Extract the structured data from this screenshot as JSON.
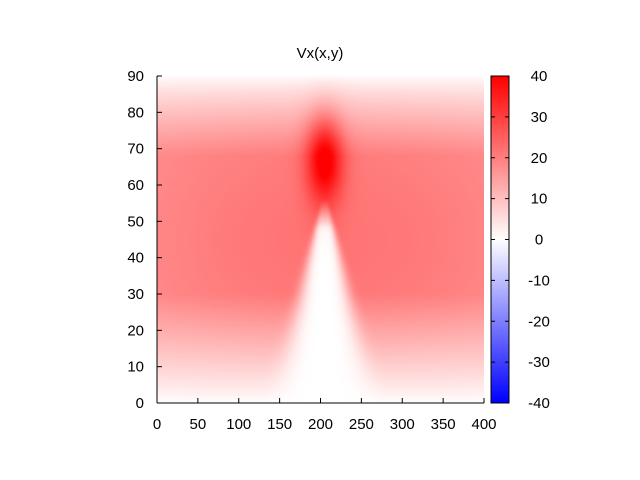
{
  "chart_data": {
    "type": "heatmap",
    "title": "Vx(x,y)",
    "xlabel": "",
    "ylabel": "",
    "xlim": [
      0,
      400
    ],
    "ylim": [
      0,
      90
    ],
    "x_ticks": [
      "0",
      "50",
      "100",
      "150",
      "200",
      "250",
      "300",
      "350",
      "400"
    ],
    "y_ticks": [
      "0",
      "10",
      "20",
      "30",
      "40",
      "50",
      "60",
      "70",
      "80",
      "90"
    ],
    "colorbar": {
      "range": [
        -40,
        40
      ],
      "ticks": [
        "40",
        "30",
        "20",
        "10",
        "0",
        "-10",
        "-20",
        "-30",
        "-40"
      ],
      "colors": {
        "low": "#0000ff",
        "mid": "#ffffff",
        "high": "#ff0000"
      }
    },
    "grid": false,
    "field": {
      "description_points": [
        {
          "x": 0,
          "y": 45,
          "value": 18
        },
        {
          "x": 50,
          "y": 45,
          "value": 20
        },
        {
          "x": 100,
          "y": 45,
          "value": 20
        },
        {
          "x": 300,
          "y": 45,
          "value": 20
        },
        {
          "x": 400,
          "y": 45,
          "value": 18
        },
        {
          "x": 205,
          "y": 67,
          "value": 40
        },
        {
          "x": 205,
          "y": 25,
          "value": 0
        },
        {
          "x": 205,
          "y": 5,
          "value": 0
        },
        {
          "x": 0,
          "y": 5,
          "value": 5
        },
        {
          "x": 400,
          "y": 5,
          "value": 5
        },
        {
          "x": 0,
          "y": 88,
          "value": 5
        },
        {
          "x": 400,
          "y": 88,
          "value": 5
        }
      ]
    }
  }
}
